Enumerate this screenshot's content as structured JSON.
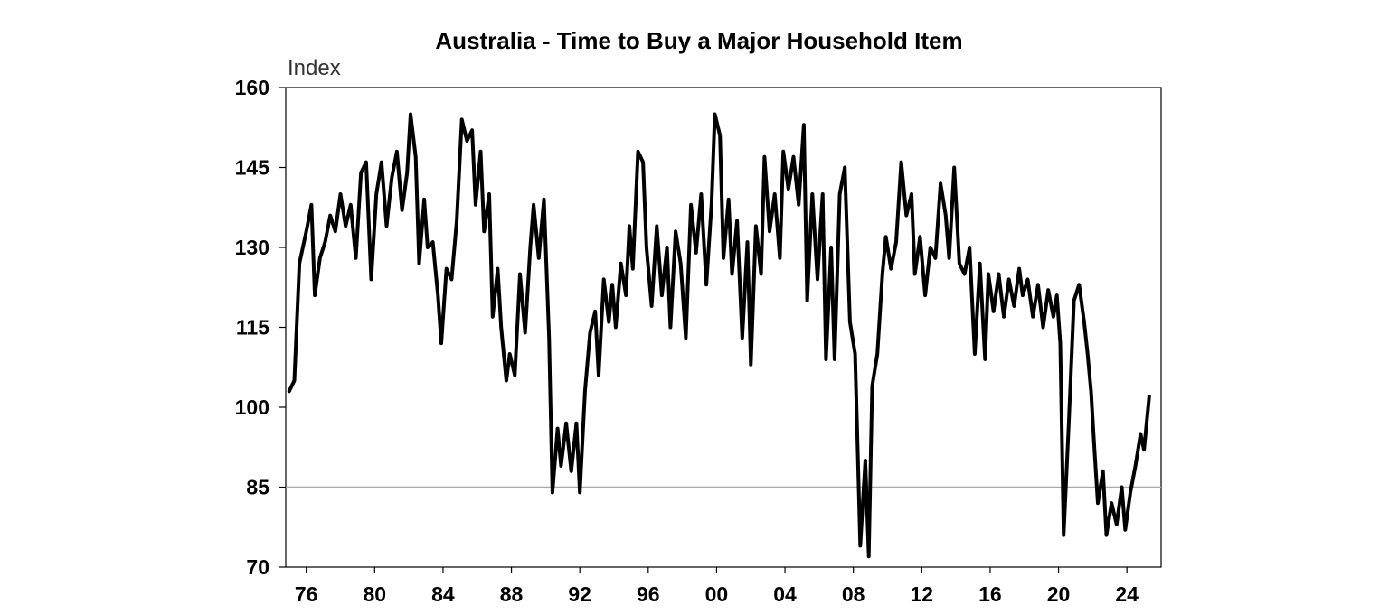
{
  "chart_data": {
    "type": "line",
    "title": "Australia - Time to Buy a Major Household Item",
    "ylabel": "Index",
    "xlabel": "",
    "ylim": [
      70,
      160
    ],
    "xlim": [
      1974.8,
      2026.0
    ],
    "y_ticks": [
      160,
      145,
      130,
      115,
      100,
      85,
      70
    ],
    "y_tick_labels": [
      "160",
      "145",
      "130",
      "115",
      "100",
      "85",
      "70"
    ],
    "x_ticks": [
      1976,
      1980,
      1984,
      1988,
      1992,
      1996,
      2000,
      2004,
      2008,
      2012,
      2016,
      2020,
      2024
    ],
    "x_tick_labels": [
      "76",
      "80",
      "84",
      "88",
      "92",
      "96",
      "00",
      "04",
      "08",
      "12",
      "16",
      "20",
      "24"
    ],
    "reference_line": 85,
    "grid": false,
    "colors": {
      "line": "#000000",
      "reference": "#aaaaaa",
      "frame": "#000000"
    },
    "series": [
      {
        "name": "",
        "points": [
          [
            1975.0,
            103
          ],
          [
            1975.3,
            105
          ],
          [
            1975.6,
            127
          ],
          [
            1976.0,
            133
          ],
          [
            1976.3,
            138
          ],
          [
            1976.5,
            121
          ],
          [
            1976.8,
            128
          ],
          [
            1977.1,
            131
          ],
          [
            1977.4,
            136
          ],
          [
            1977.7,
            133
          ],
          [
            1978.0,
            140
          ],
          [
            1978.3,
            134
          ],
          [
            1978.6,
            138
          ],
          [
            1978.9,
            128
          ],
          [
            1979.2,
            144
          ],
          [
            1979.5,
            146
          ],
          [
            1979.8,
            124
          ],
          [
            1980.1,
            140
          ],
          [
            1980.4,
            146
          ],
          [
            1980.7,
            134
          ],
          [
            1981.0,
            143
          ],
          [
            1981.3,
            148
          ],
          [
            1981.6,
            137
          ],
          [
            1981.9,
            144
          ],
          [
            1982.1,
            155
          ],
          [
            1982.4,
            147
          ],
          [
            1982.6,
            127
          ],
          [
            1982.9,
            139
          ],
          [
            1983.1,
            130
          ],
          [
            1983.4,
            131
          ],
          [
            1983.7,
            121
          ],
          [
            1983.9,
            112
          ],
          [
            1984.2,
            126
          ],
          [
            1984.5,
            124
          ],
          [
            1984.8,
            135
          ],
          [
            1985.1,
            154
          ],
          [
            1985.4,
            150
          ],
          [
            1985.7,
            152
          ],
          [
            1985.9,
            138
          ],
          [
            1986.2,
            148
          ],
          [
            1986.4,
            133
          ],
          [
            1986.7,
            140
          ],
          [
            1986.9,
            117
          ],
          [
            1987.2,
            126
          ],
          [
            1987.4,
            115
          ],
          [
            1987.7,
            105
          ],
          [
            1987.9,
            110
          ],
          [
            1988.2,
            106
          ],
          [
            1988.5,
            125
          ],
          [
            1988.8,
            114
          ],
          [
            1989.1,
            130
          ],
          [
            1989.3,
            138
          ],
          [
            1989.6,
            128
          ],
          [
            1989.9,
            139
          ],
          [
            1990.2,
            113
          ],
          [
            1990.4,
            84
          ],
          [
            1990.7,
            96
          ],
          [
            1990.9,
            89
          ],
          [
            1991.2,
            97
          ],
          [
            1991.5,
            88
          ],
          [
            1991.8,
            97
          ],
          [
            1992.0,
            84
          ],
          [
            1992.3,
            103
          ],
          [
            1992.6,
            114
          ],
          [
            1992.9,
            118
          ],
          [
            1993.1,
            106
          ],
          [
            1993.4,
            124
          ],
          [
            1993.7,
            116
          ],
          [
            1993.9,
            123
          ],
          [
            1994.1,
            115
          ],
          [
            1994.4,
            127
          ],
          [
            1994.7,
            121
          ],
          [
            1994.9,
            134
          ],
          [
            1995.1,
            126
          ],
          [
            1995.4,
            148
          ],
          [
            1995.7,
            146
          ],
          [
            1995.9,
            130
          ],
          [
            1996.2,
            119
          ],
          [
            1996.5,
            134
          ],
          [
            1996.8,
            121
          ],
          [
            1997.1,
            130
          ],
          [
            1997.3,
            115
          ],
          [
            1997.6,
            133
          ],
          [
            1997.9,
            127
          ],
          [
            1998.2,
            113
          ],
          [
            1998.5,
            138
          ],
          [
            1998.8,
            129
          ],
          [
            1999.1,
            140
          ],
          [
            1999.4,
            123
          ],
          [
            1999.7,
            138
          ],
          [
            1999.9,
            155
          ],
          [
            2000.2,
            151
          ],
          [
            2000.4,
            128
          ],
          [
            2000.7,
            139
          ],
          [
            2000.9,
            125
          ],
          [
            2001.2,
            135
          ],
          [
            2001.5,
            113
          ],
          [
            2001.8,
            131
          ],
          [
            2002.0,
            108
          ],
          [
            2002.3,
            134
          ],
          [
            2002.6,
            125
          ],
          [
            2002.8,
            147
          ],
          [
            2003.1,
            133
          ],
          [
            2003.4,
            140
          ],
          [
            2003.7,
            128
          ],
          [
            2003.9,
            148
          ],
          [
            2004.2,
            141
          ],
          [
            2004.5,
            147
          ],
          [
            2004.8,
            138
          ],
          [
            2005.1,
            153
          ],
          [
            2005.3,
            120
          ],
          [
            2005.6,
            140
          ],
          [
            2005.9,
            124
          ],
          [
            2006.2,
            140
          ],
          [
            2006.4,
            109
          ],
          [
            2006.7,
            130
          ],
          [
            2006.9,
            109
          ],
          [
            2007.2,
            140
          ],
          [
            2007.5,
            145
          ],
          [
            2007.8,
            116
          ],
          [
            2008.1,
            110
          ],
          [
            2008.4,
            74
          ],
          [
            2008.7,
            90
          ],
          [
            2008.9,
            72
          ],
          [
            2009.1,
            104
          ],
          [
            2009.4,
            110
          ],
          [
            2009.7,
            125
          ],
          [
            2009.9,
            132
          ],
          [
            2010.2,
            126
          ],
          [
            2010.5,
            131
          ],
          [
            2010.8,
            146
          ],
          [
            2011.1,
            136
          ],
          [
            2011.4,
            140
          ],
          [
            2011.6,
            125
          ],
          [
            2011.9,
            132
          ],
          [
            2012.2,
            121
          ],
          [
            2012.5,
            130
          ],
          [
            2012.8,
            128
          ],
          [
            2013.1,
            142
          ],
          [
            2013.4,
            136
          ],
          [
            2013.6,
            128
          ],
          [
            2013.9,
            145
          ],
          [
            2014.2,
            127
          ],
          [
            2014.5,
            125
          ],
          [
            2014.8,
            130
          ],
          [
            2015.1,
            110
          ],
          [
            2015.4,
            127
          ],
          [
            2015.7,
            109
          ],
          [
            2015.9,
            125
          ],
          [
            2016.2,
            118
          ],
          [
            2016.5,
            125
          ],
          [
            2016.8,
            117
          ],
          [
            2017.1,
            124
          ],
          [
            2017.4,
            119
          ],
          [
            2017.7,
            126
          ],
          [
            2017.9,
            121
          ],
          [
            2018.2,
            124
          ],
          [
            2018.5,
            117
          ],
          [
            2018.8,
            123
          ],
          [
            2019.1,
            115
          ],
          [
            2019.4,
            122
          ],
          [
            2019.7,
            117
          ],
          [
            2019.9,
            121
          ],
          [
            2020.1,
            112
          ],
          [
            2020.3,
            76
          ],
          [
            2020.6,
            97
          ],
          [
            2020.9,
            120
          ],
          [
            2021.2,
            123
          ],
          [
            2021.5,
            116
          ],
          [
            2021.7,
            110
          ],
          [
            2021.9,
            103
          ],
          [
            2022.1,
            92
          ],
          [
            2022.3,
            82
          ],
          [
            2022.6,
            88
          ],
          [
            2022.8,
            76
          ],
          [
            2023.1,
            82
          ],
          [
            2023.4,
            78
          ],
          [
            2023.7,
            85
          ],
          [
            2023.9,
            77
          ],
          [
            2024.2,
            84
          ],
          [
            2024.5,
            89
          ],
          [
            2024.8,
            95
          ],
          [
            2025.0,
            92
          ],
          [
            2025.3,
            102
          ]
        ]
      }
    ]
  }
}
